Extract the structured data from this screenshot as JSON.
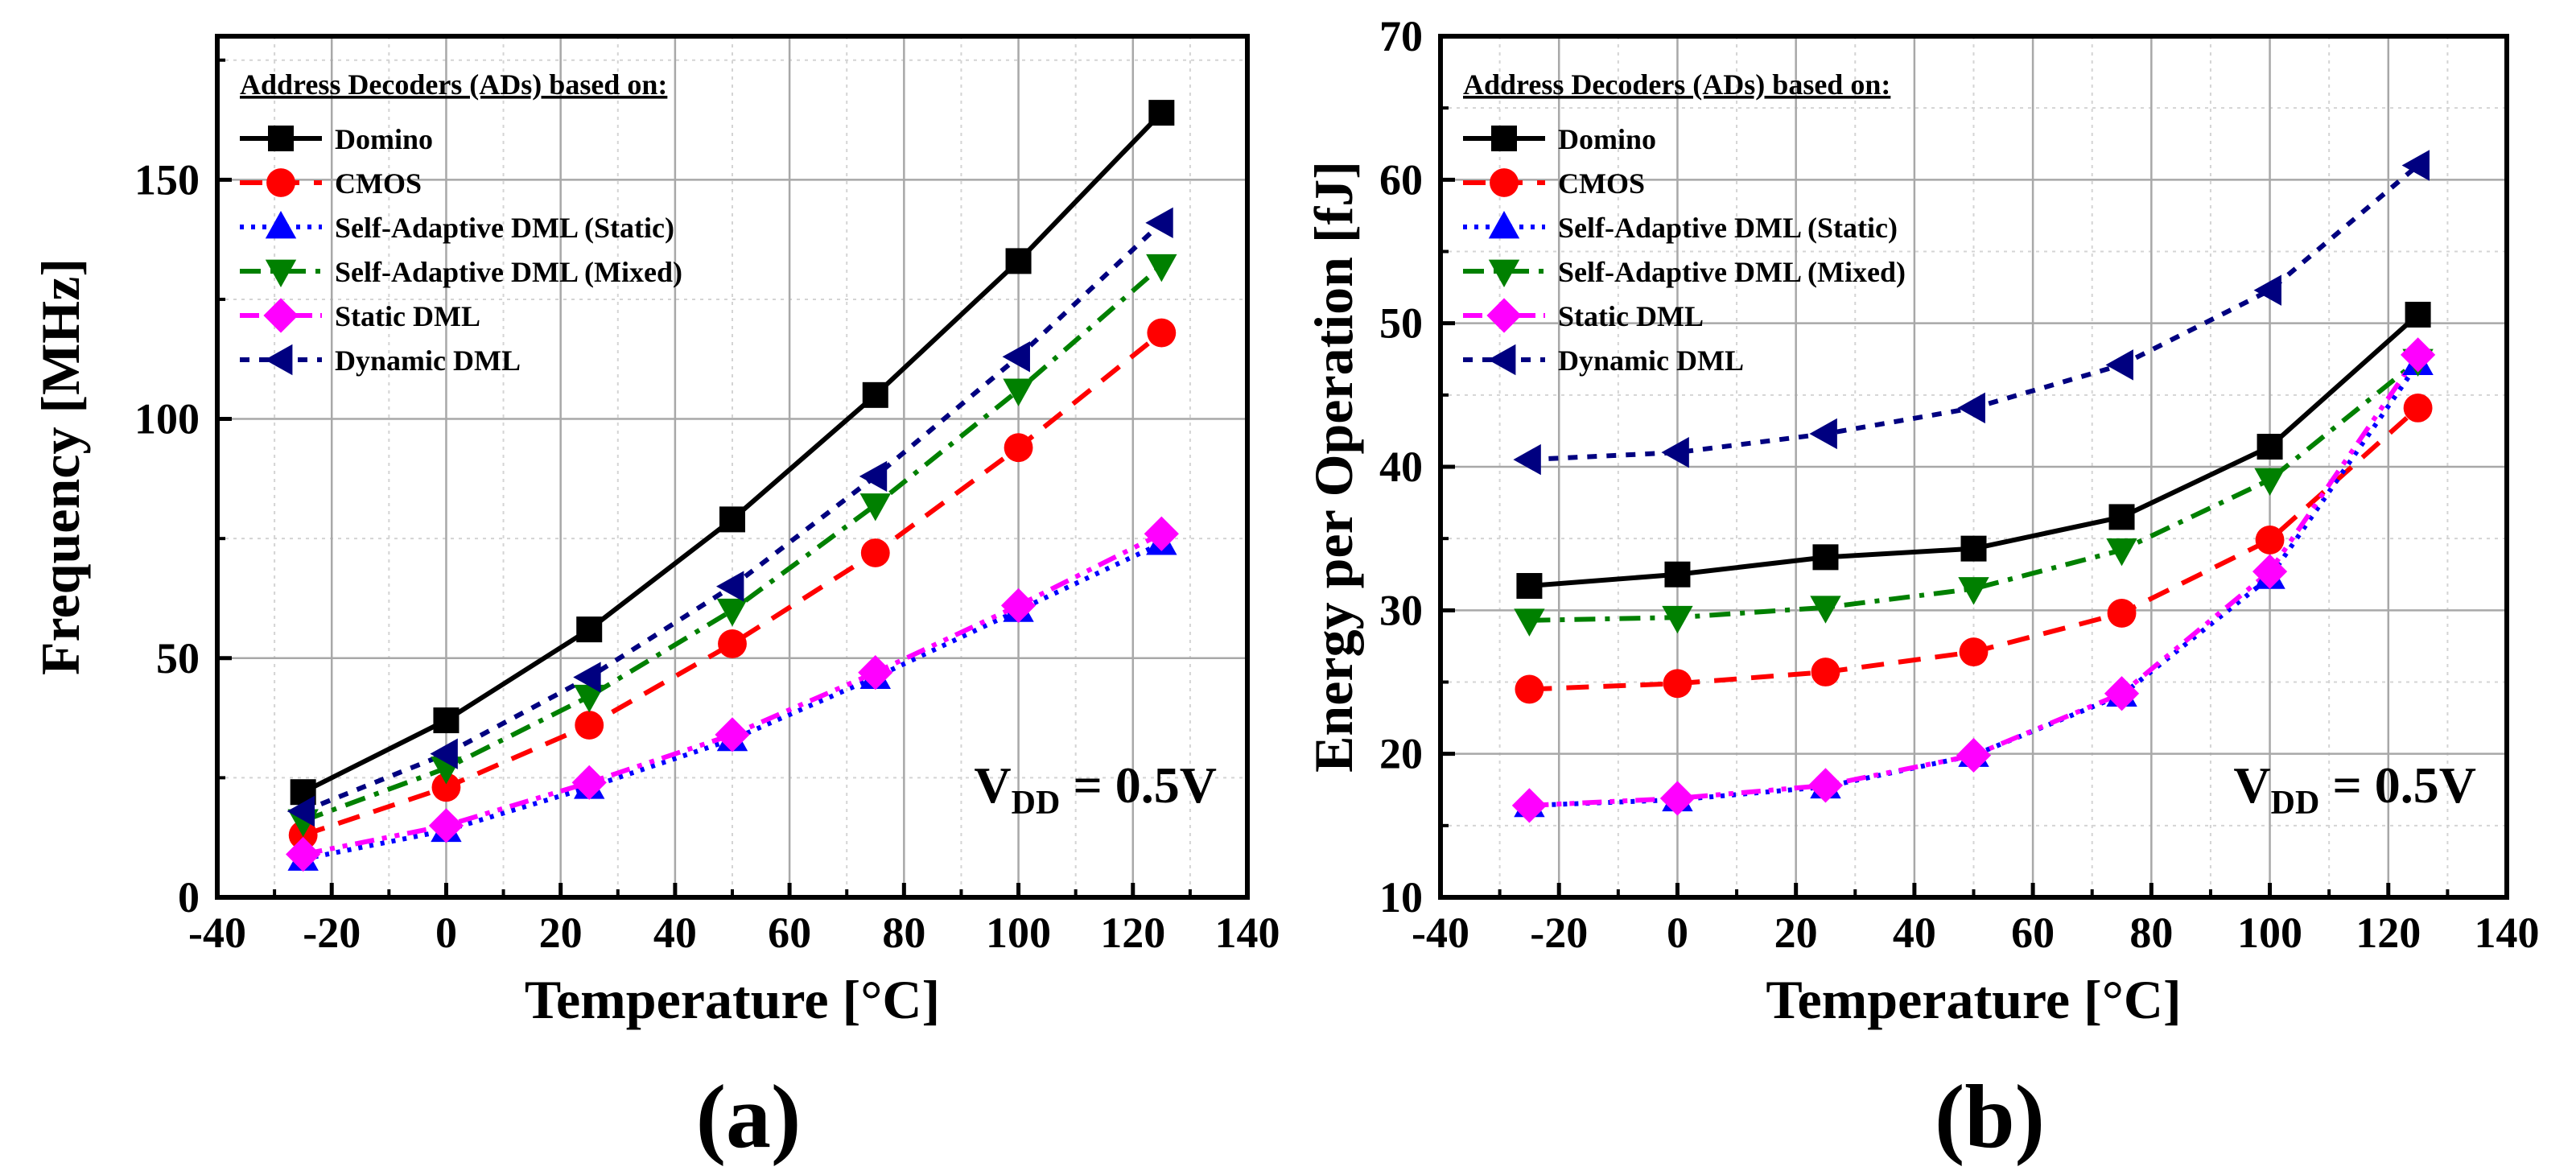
{
  "chart_data": [
    {
      "type": "line",
      "caption": "(a)",
      "xlabel": "Temperature [°C]",
      "ylabel": "Frequency [MHz]",
      "xlim": [
        -40,
        140
      ],
      "ylim": [
        0,
        180
      ],
      "xticks": [
        -40,
        -20,
        0,
        20,
        40,
        60,
        80,
        100,
        120,
        140
      ],
      "yticks": [
        0,
        50,
        100,
        150
      ],
      "grid": true,
      "legend_title": "Address Decoders (ADs) based on:",
      "legend_position": "top-left",
      "annotation": {
        "main": "V",
        "sub": "DD",
        "rest": " = 0.5V"
      },
      "x": [
        -25,
        0,
        25,
        50,
        75,
        100,
        125
      ],
      "series": [
        {
          "name": "Domino",
          "color": "#000000",
          "marker": "square",
          "dash": "solid",
          "values": [
            22,
            37,
            56,
            79,
            105,
            133,
            164
          ]
        },
        {
          "name": "CMOS",
          "color": "#ff0000",
          "marker": "circle",
          "dash": "dash",
          "values": [
            13,
            23,
            36,
            53,
            72,
            94,
            118
          ]
        },
        {
          "name": "Self-Adaptive DML (Static)",
          "color": "#0000ff",
          "marker": "triangle-up",
          "dash": "dot",
          "values": [
            8,
            14,
            23,
            33,
            46,
            60,
            74
          ]
        },
        {
          "name": "Self-Adaptive DML (Mixed)",
          "color": "#008000",
          "marker": "triangle-down",
          "dash": "dashdot",
          "values": [
            16,
            27,
            42,
            60,
            82,
            106,
            132
          ]
        },
        {
          "name": "Static DML",
          "color": "#ff00ff",
          "marker": "diamond",
          "dash": "dashdotdot",
          "values": [
            9,
            15,
            24,
            34,
            47,
            61,
            76
          ]
        },
        {
          "name": "Dynamic DML",
          "color": "#000080",
          "marker": "triangle-left",
          "dash": "shortdot",
          "values": [
            18,
            30,
            46,
            65,
            88,
            113,
            141
          ]
        }
      ]
    },
    {
      "type": "line",
      "caption": "(b)",
      "xlabel": "Temperature [°C]",
      "ylabel": "Energy per Operation [fJ]",
      "xlim": [
        -40,
        140
      ],
      "ylim": [
        10,
        70
      ],
      "xticks": [
        -40,
        -20,
        0,
        20,
        40,
        60,
        80,
        100,
        120,
        140
      ],
      "yticks": [
        10,
        20,
        30,
        40,
        50,
        60,
        70
      ],
      "grid": true,
      "legend_title": "Address Decoders (ADs) based on:",
      "legend_position": "top-left",
      "annotation": {
        "main": "V",
        "sub": "DD",
        "rest": " = 0.5V"
      },
      "x": [
        -25,
        0,
        25,
        50,
        75,
        100,
        125
      ],
      "series": [
        {
          "name": "Domino",
          "color": "#000000",
          "marker": "square",
          "dash": "solid",
          "values": [
            31.7,
            32.5,
            33.7,
            34.3,
            36.5,
            41.4,
            50.6
          ]
        },
        {
          "name": "CMOS",
          "color": "#ff0000",
          "marker": "circle",
          "dash": "dash",
          "values": [
            24.5,
            24.9,
            25.7,
            27.1,
            29.8,
            34.9,
            44.1
          ]
        },
        {
          "name": "Self-Adaptive DML (Static)",
          "color": "#0000ff",
          "marker": "triangle-up",
          "dash": "dot",
          "values": [
            16.4,
            16.8,
            17.7,
            19.9,
            24.1,
            32.3,
            47.2
          ]
        },
        {
          "name": "Self-Adaptive DML (Mixed)",
          "color": "#008000",
          "marker": "triangle-down",
          "dash": "dashdot",
          "values": [
            29.3,
            29.5,
            30.2,
            31.5,
            34.2,
            39.1,
            47.4
          ]
        },
        {
          "name": "Static DML",
          "color": "#ff00ff",
          "marker": "diamond",
          "dash": "dashdotdot",
          "values": [
            16.4,
            16.9,
            17.8,
            19.9,
            24.2,
            32.7,
            47.8
          ]
        },
        {
          "name": "Dynamic DML",
          "color": "#000080",
          "marker": "triangle-left",
          "dash": "shortdot",
          "values": [
            40.5,
            41.0,
            42.3,
            44.1,
            47.1,
            52.3,
            61.0
          ]
        }
      ]
    }
  ]
}
